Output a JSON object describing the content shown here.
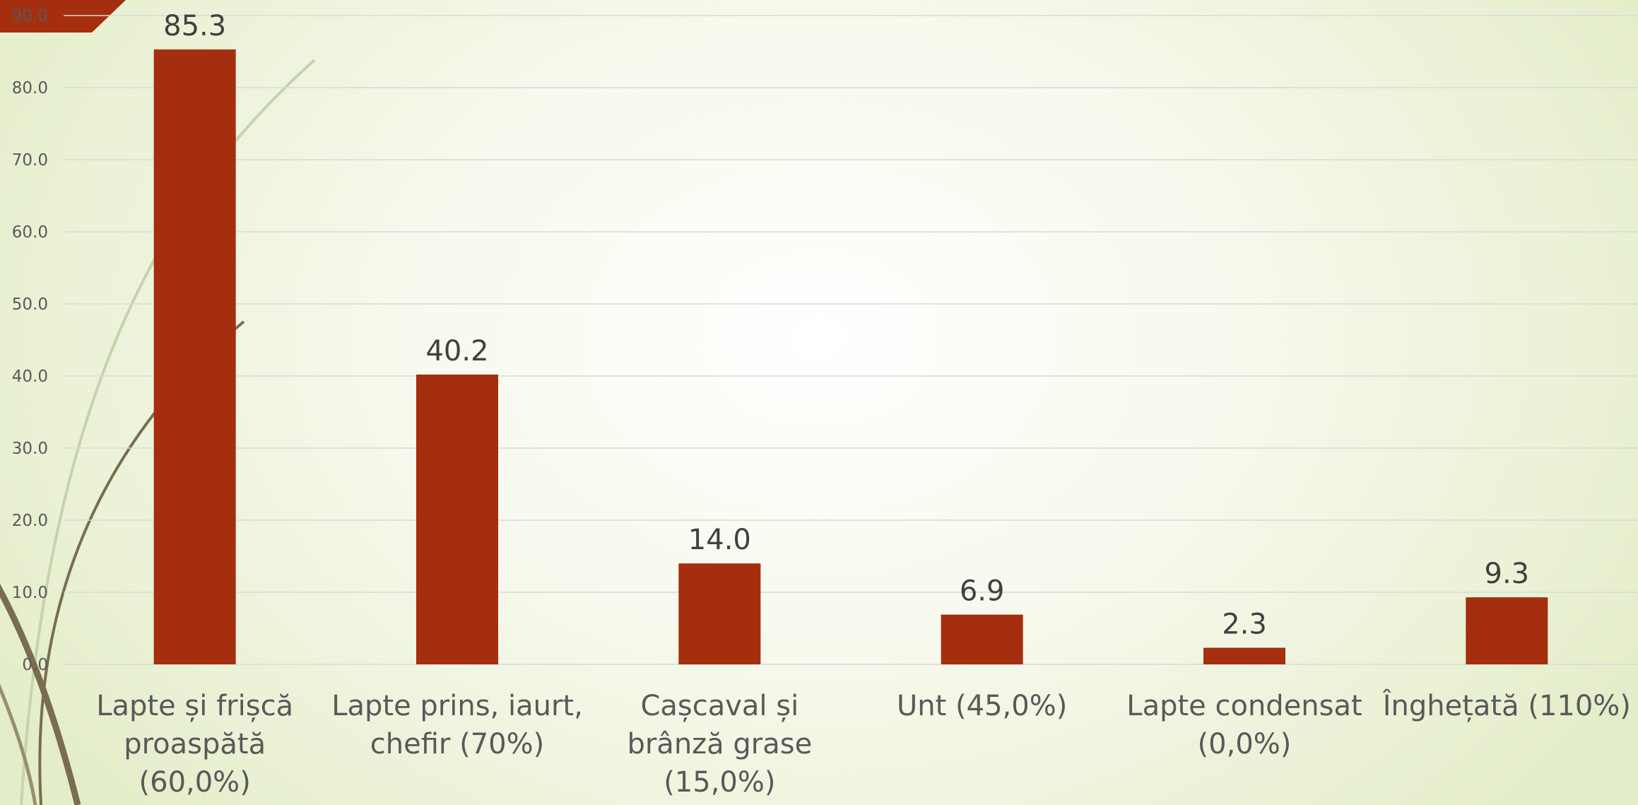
{
  "chart_data": {
    "type": "bar",
    "categories": [
      "Lapte și frișcă proaspătă (60,0%)",
      "Lapte prins, iaurt, chefir (70%)",
      "Cașcaval și brânză grase (15,0%)",
      "Unt (45,0%)",
      "Lapte condensat (0,0%)",
      "Înghețată (110%)"
    ],
    "category_lines": [
      [
        "Lapte și frișcă",
        "proaspătă",
        "(60,0%)"
      ],
      [
        "Lapte prins, iaurt,",
        "chefir (70%)"
      ],
      [
        "Cașcaval și",
        "brânză grase",
        "(15,0%)"
      ],
      [
        "Unt (45,0%)"
      ],
      [
        "Lapte condensat",
        "(0,0%)"
      ],
      [
        "Înghețată (110%)"
      ]
    ],
    "values": [
      85.3,
      40.2,
      14.0,
      6.9,
      2.3,
      9.3
    ],
    "data_labels": [
      "85.3",
      "40.2",
      "14.0",
      "6.9",
      "2.3",
      "9.3"
    ],
    "yticks": [
      "0.0",
      "10.0",
      "20.0",
      "30.0",
      "40.0",
      "50.0",
      "60.0",
      "70.0",
      "80.0",
      "90.0"
    ],
    "ylim": [
      0,
      90
    ],
    "grid": true,
    "legend": "none",
    "bar_color": "#a52e0f"
  },
  "decor": {
    "accent_color": "#a52e0f",
    "curve_colors": [
      "#7a6d4e",
      "#c8d2ab"
    ]
  }
}
